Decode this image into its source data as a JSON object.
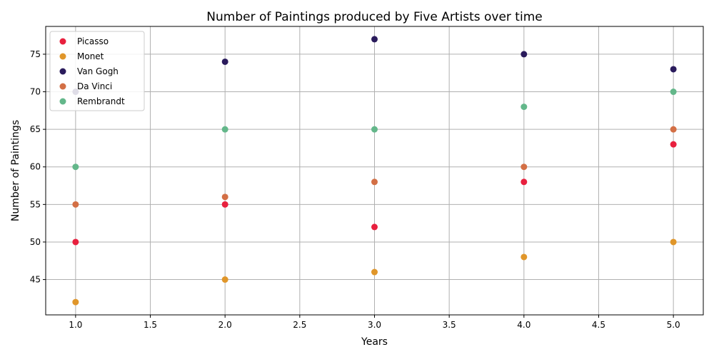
{
  "chart_data": {
    "type": "scatter",
    "title": "Number of Paintings produced by Five Artists over time",
    "xlabel": "Years",
    "ylabel": "Number of Paintings",
    "xlim": [
      0.8,
      5.2
    ],
    "ylim": [
      40.3,
      78.7
    ],
    "xticks": [
      "1.0",
      "1.5",
      "2.0",
      "2.5",
      "3.0",
      "3.5",
      "4.0",
      "4.5",
      "5.0"
    ],
    "yticks": [
      "45",
      "50",
      "55",
      "60",
      "65",
      "70",
      "75"
    ],
    "grid": true,
    "legend_position": "top-left",
    "series": [
      {
        "name": "Picasso",
        "color": "#e8203e",
        "x": [
          1,
          2,
          3,
          4,
          5
        ],
        "y": [
          50,
          55,
          52,
          58,
          63
        ]
      },
      {
        "name": "Monet",
        "color": "#e0962a",
        "x": [
          1,
          2,
          3,
          4,
          5
        ],
        "y": [
          42,
          45,
          46,
          48,
          50
        ]
      },
      {
        "name": "Van Gogh",
        "color": "#2a1b5c",
        "x": [
          1,
          2,
          3,
          4,
          5
        ],
        "y": [
          70,
          74,
          77,
          75,
          73
        ]
      },
      {
        "name": "Da Vinci",
        "color": "#d36f45",
        "x": [
          1,
          2,
          3,
          4,
          5
        ],
        "y": [
          55,
          56,
          58,
          60,
          65
        ]
      },
      {
        "name": "Rembrandt",
        "color": "#63b78a",
        "x": [
          1,
          2,
          3,
          4,
          5
        ],
        "y": [
          60,
          65,
          65,
          68,
          70
        ]
      }
    ]
  }
}
